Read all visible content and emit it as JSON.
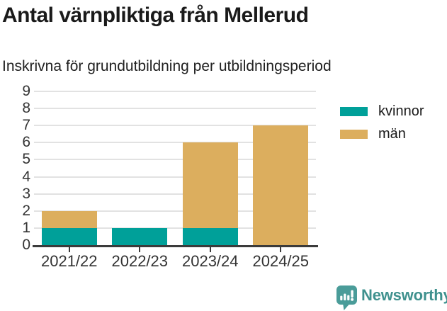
{
  "chart_data": {
    "type": "bar",
    "stacked": true,
    "title": "Antal värnpliktiga från Mellerud",
    "subtitle": "Inskrivna för grundutbildning per utbildningsperiod",
    "categories": [
      "2021/22",
      "2022/23",
      "2023/24",
      "2024/25"
    ],
    "series": [
      {
        "name": "kvinnor",
        "color": "#00a099",
        "values": [
          1,
          1,
          1,
          0
        ]
      },
      {
        "name": "män",
        "color": "#dcae5e",
        "values": [
          1,
          0,
          5,
          7
        ]
      }
    ],
    "totals": [
      2,
      1,
      6,
      7
    ],
    "xlabel": "",
    "ylabel": "",
    "ylim": [
      0,
      9
    ],
    "ytick_step": 1,
    "grid": true,
    "legend_position": "right",
    "grid_color": "#e2e2e2",
    "axis_color": "#3b3b3b",
    "text_color": "#333333"
  },
  "footer": {
    "brand": "Newsworthy",
    "brand_color": "#3f918e",
    "icon": "newsworthy-speech-bubble-chart-icon"
  }
}
